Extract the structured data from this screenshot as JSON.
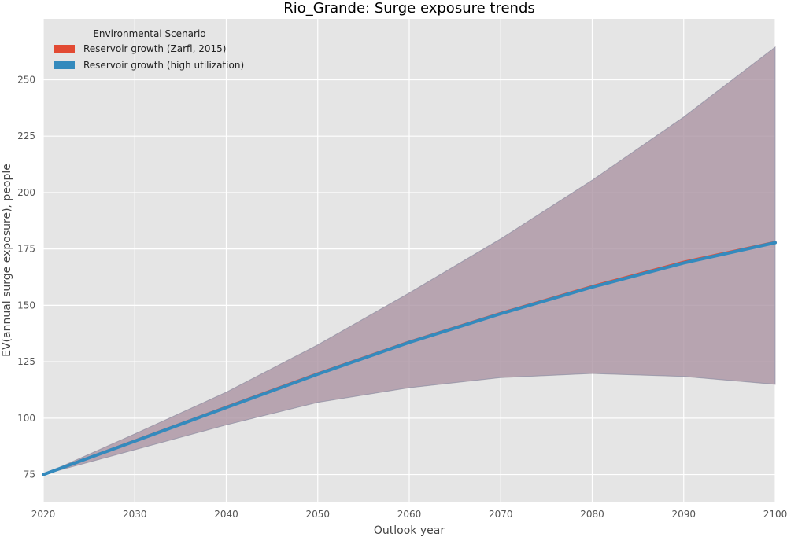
{
  "chart_data": {
    "type": "line",
    "title": "Rio_Grande: Surge exposure trends",
    "xlabel": "Outlook year",
    "ylabel": "EV(annual surge exposure), people",
    "xlim": [
      2020,
      2100
    ],
    "ylim": [
      63,
      277
    ],
    "x_ticks": [
      2020,
      2030,
      2040,
      2050,
      2060,
      2070,
      2080,
      2090,
      2100
    ],
    "y_ticks": [
      75,
      100,
      125,
      150,
      175,
      200,
      225,
      250
    ],
    "grid": true,
    "legend": {
      "title": "Environmental Scenario",
      "placement": "top-left"
    },
    "series": [
      {
        "name": "Reservoir growth (Zarfl, 2015)",
        "color": "#E24A33",
        "x": [
          2020,
          2030,
          2040,
          2050,
          2060,
          2070,
          2080,
          2090,
          2100
        ],
        "values": [
          75,
          89.9,
          104.9,
          119.7,
          133.8,
          146.5,
          158.4,
          169.2,
          178
        ],
        "lower": [
          75,
          86,
          97,
          107,
          113.5,
          118,
          119.8,
          118.5,
          115
        ],
        "upper": [
          75,
          93,
          111.5,
          132.5,
          155.5,
          179.5,
          205.5,
          233.5,
          264.5
        ]
      },
      {
        "name": "Reservoir growth (high utilization)",
        "color": "#348ABD",
        "x": [
          2020,
          2030,
          2040,
          2050,
          2060,
          2070,
          2080,
          2090,
          2100
        ],
        "values": [
          75,
          89.8,
          104.7,
          119.5,
          133.6,
          146.3,
          158.1,
          168.8,
          177.8
        ],
        "lower": [
          75,
          86,
          97,
          107,
          113.5,
          118,
          119.8,
          118.5,
          115
        ],
        "upper": [
          75,
          93,
          111.5,
          132.5,
          155.5,
          179.5,
          205.5,
          233.5,
          264.5
        ]
      }
    ]
  },
  "style": {
    "plot_background": "#E5E5E5",
    "grid_color": "#FFFFFF",
    "band_color": "#A89BAE"
  }
}
